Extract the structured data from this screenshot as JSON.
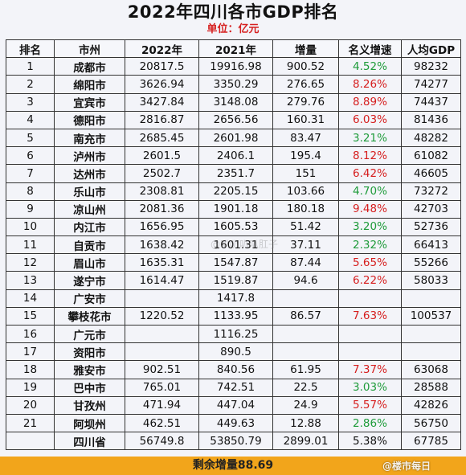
{
  "title": "2022年四川各市GDP排名",
  "unit": "单位：亿元",
  "headers": [
    "排名",
    "市州",
    "2022年",
    "2021年",
    "增量",
    "名义增速",
    "人均GDP"
  ],
  "rows": [
    {
      "rank": "1",
      "city": "成都市",
      "y2022": "20817.5",
      "y2021": "19916.98",
      "inc": "900.52",
      "growth": "4.52%",
      "gc": "g",
      "pc": "98232"
    },
    {
      "rank": "2",
      "city": "绵阳市",
      "y2022": "3626.94",
      "y2021": "3350.29",
      "inc": "276.65",
      "growth": "8.26%",
      "gc": "r",
      "pc": "74277"
    },
    {
      "rank": "3",
      "city": "宜宾市",
      "y2022": "3427.84",
      "y2021": "3148.08",
      "inc": "279.76",
      "growth": "8.89%",
      "gc": "r",
      "pc": "74437"
    },
    {
      "rank": "4",
      "city": "德阳市",
      "y2022": "2816.87",
      "y2021": "2656.56",
      "inc": "160.31",
      "growth": "6.03%",
      "gc": "r",
      "pc": "81436"
    },
    {
      "rank": "5",
      "city": "南充市",
      "y2022": "2685.45",
      "y2021": "2601.98",
      "inc": "83.47",
      "growth": "3.21%",
      "gc": "g",
      "pc": "48282"
    },
    {
      "rank": "6",
      "city": "泸州市",
      "y2022": "2601.5",
      "y2021": "2406.1",
      "inc": "195.4",
      "growth": "8.12%",
      "gc": "r",
      "pc": "61082"
    },
    {
      "rank": "7",
      "city": "达州市",
      "y2022": "2502.7",
      "y2021": "2351.7",
      "inc": "151",
      "growth": "6.42%",
      "gc": "r",
      "pc": "46605"
    },
    {
      "rank": "8",
      "city": "乐山市",
      "y2022": "2308.81",
      "y2021": "2205.15",
      "inc": "103.66",
      "growth": "4.70%",
      "gc": "g",
      "pc": "73272"
    },
    {
      "rank": "9",
      "city": "凉山州",
      "y2022": "2081.36",
      "y2021": "1901.18",
      "inc": "180.18",
      "growth": "9.48%",
      "gc": "r",
      "pc": "42703"
    },
    {
      "rank": "10",
      "city": "内江市",
      "y2022": "1656.95",
      "y2021": "1605.53",
      "inc": "51.42",
      "growth": "3.20%",
      "gc": "g",
      "pc": "52736"
    },
    {
      "rank": "11",
      "city": "自贡市",
      "y2022": "1638.42",
      "y2021": "1601.31",
      "inc": "37.11",
      "growth": "2.32%",
      "gc": "g",
      "pc": "66413"
    },
    {
      "rank": "12",
      "city": "眉山市",
      "y2022": "1635.31",
      "y2021": "1547.87",
      "inc": "87.44",
      "growth": "5.65%",
      "gc": "r",
      "pc": "55266"
    },
    {
      "rank": "13",
      "city": "遂宁市",
      "y2022": "1614.47",
      "y2021": "1519.87",
      "inc": "94.6",
      "growth": "6.22%",
      "gc": "r",
      "pc": "58033"
    },
    {
      "rank": "14",
      "city": "广安市",
      "y2022": "",
      "y2021": "1417.8",
      "inc": "",
      "growth": "",
      "gc": "",
      "pc": ""
    },
    {
      "rank": "15",
      "city": "攀枝花市",
      "y2022": "1220.52",
      "y2021": "1133.95",
      "inc": "86.57",
      "growth": "7.63%",
      "gc": "r",
      "pc": "100537"
    },
    {
      "rank": "16",
      "city": "广元市",
      "y2022": "",
      "y2021": "1116.25",
      "inc": "",
      "growth": "",
      "gc": "",
      "pc": ""
    },
    {
      "rank": "17",
      "city": "资阳市",
      "y2022": "",
      "y2021": "890.5",
      "inc": "",
      "growth": "",
      "gc": "",
      "pc": ""
    },
    {
      "rank": "18",
      "city": "雅安市",
      "y2022": "902.51",
      "y2021": "840.56",
      "inc": "61.95",
      "growth": "7.37%",
      "gc": "r",
      "pc": "63068"
    },
    {
      "rank": "19",
      "city": "巴中市",
      "y2022": "765.01",
      "y2021": "742.51",
      "inc": "22.5",
      "growth": "3.03%",
      "gc": "g",
      "pc": "28588"
    },
    {
      "rank": "20",
      "city": "甘孜州",
      "y2022": "471.94",
      "y2021": "447.04",
      "inc": "24.9",
      "growth": "5.57%",
      "gc": "r",
      "pc": "42826"
    },
    {
      "rank": "21",
      "city": "阿坝州",
      "y2022": "462.51",
      "y2021": "449.63",
      "inc": "12.88",
      "growth": "2.86%",
      "gc": "g",
      "pc": "56750"
    },
    {
      "rank": "",
      "city": "四川省",
      "y2022": "56749.8",
      "y2021": "53850.79",
      "inc": "2899.01",
      "growth": "5.38%",
      "gc": "k",
      "pc": "67785"
    }
  ],
  "footer": "剩余增量88.69",
  "watermark_mid": "@叭叭叭叭肛子",
  "watermark_corner": "@楼市每日",
  "colors": {
    "green": "#1e9b3a",
    "red": "#d61e1e",
    "footer_bg": "#f2a51b",
    "unit_red": "#d62020"
  }
}
